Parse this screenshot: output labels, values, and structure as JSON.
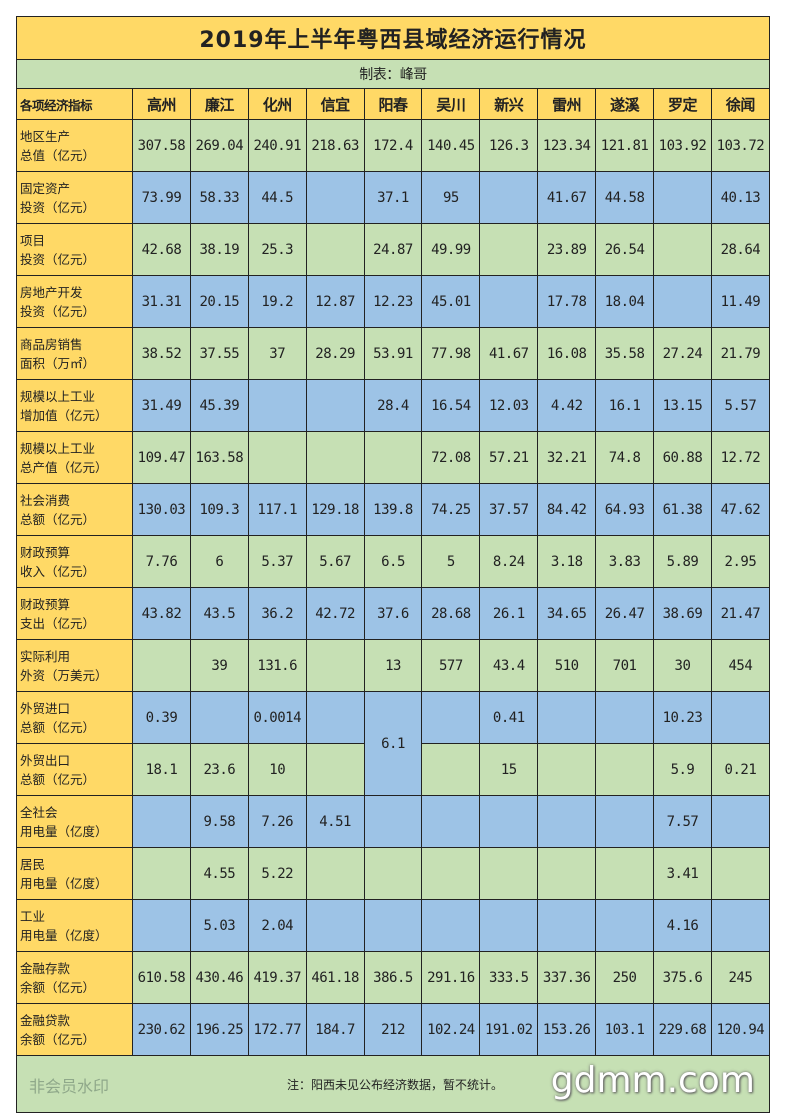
{
  "title": "2019年上半年粤西县域经济运行情况",
  "subtitle": "制表：峰哥",
  "header": {
    "first": "各项经济指标",
    "columns": [
      "高州",
      "廉江",
      "化州",
      "信宜",
      "阳春",
      "吴川",
      "新兴",
      "雷州",
      "遂溪",
      "罗定",
      "徐闻"
    ]
  },
  "rows": [
    {
      "label": [
        "地区生产",
        "总值（亿元）"
      ],
      "values": [
        "307.58",
        "269.04",
        "240.91",
        "218.63",
        "172.4",
        "140.45",
        "126.3",
        "123.34",
        "121.81",
        "103.92",
        "103.72"
      ]
    },
    {
      "label": [
        "固定资产",
        "投资（亿元）"
      ],
      "values": [
        "73.99",
        "58.33",
        "44.5",
        "",
        "37.1",
        "95",
        "",
        "41.67",
        "44.58",
        "",
        "40.13"
      ]
    },
    {
      "label": [
        "项目",
        "投资（亿元）"
      ],
      "values": [
        "42.68",
        "38.19",
        "25.3",
        "",
        "24.87",
        "49.99",
        "",
        "23.89",
        "26.54",
        "",
        "28.64"
      ]
    },
    {
      "label": [
        "房地产开发",
        "投资（亿元）"
      ],
      "values": [
        "31.31",
        "20.15",
        "19.2",
        "12.87",
        "12.23",
        "45.01",
        "",
        "17.78",
        "18.04",
        "",
        "11.49"
      ]
    },
    {
      "label": [
        "商品房销售",
        "面积（万㎡）"
      ],
      "values": [
        "38.52",
        "37.55",
        "37",
        "28.29",
        "53.91",
        "77.98",
        "41.67",
        "16.08",
        "35.58",
        "27.24",
        "21.79"
      ]
    },
    {
      "label": [
        "规模以上工业",
        "增加值（亿元）"
      ],
      "values": [
        "31.49",
        "45.39",
        "",
        "",
        "28.4",
        "16.54",
        "12.03",
        "4.42",
        "16.1",
        "13.15",
        "5.57"
      ]
    },
    {
      "label": [
        "规模以上工业",
        "总产值（亿元）"
      ],
      "values": [
        "109.47",
        "163.58",
        "",
        "",
        "",
        "72.08",
        "57.21",
        "32.21",
        "74.8",
        "60.88",
        "12.72"
      ]
    },
    {
      "label": [
        "社会消费",
        "总额（亿元）"
      ],
      "values": [
        "130.03",
        "109.3",
        "117.1",
        "129.18",
        "139.8",
        "74.25",
        "37.57",
        "84.42",
        "64.93",
        "61.38",
        "47.62"
      ]
    },
    {
      "label": [
        "财政预算",
        "收入（亿元）"
      ],
      "values": [
        "7.76",
        "6",
        "5.37",
        "5.67",
        "6.5",
        "5",
        "8.24",
        "3.18",
        "3.83",
        "5.89",
        "2.95"
      ]
    },
    {
      "label": [
        "财政预算",
        "支出（亿元）"
      ],
      "values": [
        "43.82",
        "43.5",
        "36.2",
        "42.72",
        "37.6",
        "28.68",
        "26.1",
        "34.65",
        "26.47",
        "38.69",
        "21.47"
      ]
    },
    {
      "label": [
        "实际利用",
        "外资（万美元）"
      ],
      "values": [
        "",
        "39",
        "131.6",
        "",
        "13",
        "577",
        "43.4",
        "510",
        "701",
        "30",
        "454"
      ]
    },
    {
      "label": [
        "外贸进口",
        "总额（亿元）"
      ],
      "values": [
        "0.39",
        "",
        "0.0014",
        "",
        "6.1",
        "",
        "0.41",
        "",
        "",
        "10.23",
        ""
      ]
    },
    {
      "label": [
        "外贸出口",
        "总额（亿元）"
      ],
      "values": [
        "18.1",
        "23.6",
        "10",
        "",
        null,
        "",
        "15",
        "",
        "",
        "5.9",
        "0.21"
      ]
    },
    {
      "label": [
        "全社会",
        "用电量（亿度）"
      ],
      "values": [
        "",
        "9.58",
        "7.26",
        "4.51",
        "",
        "",
        "",
        "",
        "",
        "7.57",
        ""
      ]
    },
    {
      "label": [
        "居民",
        "用电量（亿度）"
      ],
      "values": [
        "",
        "4.55",
        "5.22",
        "",
        "",
        "",
        "",
        "",
        "",
        "3.41",
        ""
      ]
    },
    {
      "label": [
        "工业",
        "用电量（亿度）"
      ],
      "values": [
        "",
        "5.03",
        "2.04",
        "",
        "",
        "",
        "",
        "",
        "",
        "4.16",
        ""
      ]
    },
    {
      "label": [
        "金融存款",
        "余额（亿元）"
      ],
      "values": [
        "610.58",
        "430.46",
        "419.37",
        "461.18",
        "386.5",
        "291.16",
        "333.5",
        "337.36",
        "250",
        "375.6",
        "245"
      ]
    },
    {
      "label": [
        "金融贷款",
        "余额（亿元）"
      ],
      "values": [
        "230.62",
        "196.25",
        "172.77",
        "184.7",
        "212",
        "102.24",
        "191.02",
        "153.26",
        "103.1",
        "229.68",
        "120.94"
      ]
    }
  ],
  "footnote": "注：阳西未见公布经济数据，暂不统计。",
  "watermark": {
    "text": "非会员水印",
    "site": "gdmm.com"
  },
  "colors": {
    "yellow": "#ffd966",
    "green": "#c6e0b4",
    "blue": "#9dc3e6"
  }
}
